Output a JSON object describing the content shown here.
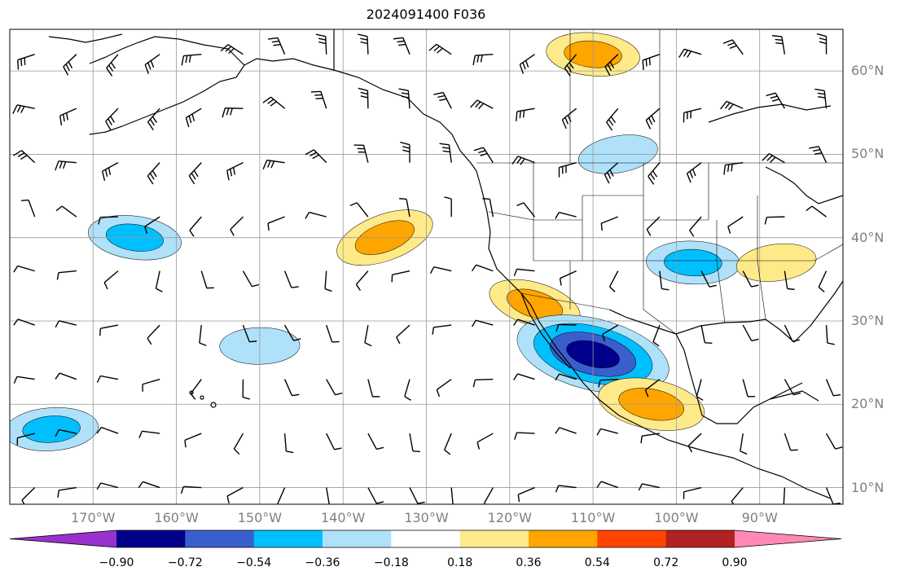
{
  "title": "2024091400 F036",
  "lat_labels": [
    "60°N",
    "50°N",
    "40°N",
    "30°N",
    "20°N",
    "10°N"
  ],
  "lon_labels": [
    "170°W",
    "160°W",
    "150°W",
    "140°W",
    "130°W",
    "120°W",
    "110°W",
    "100°W",
    "90°W"
  ],
  "map_extent": {
    "lon_min": -180,
    "lon_max": -80,
    "lat_min": 8,
    "lat_max": 65
  },
  "colorbar": {
    "colors": [
      "#9932cc",
      "#00008b",
      "#3a5fcd",
      "#00bfff",
      "#afe1fa",
      "#ffffff",
      "#ffea8a",
      "#ffa500",
      "#ff4500",
      "#b22222",
      "#ff88b4"
    ],
    "labels": [
      "−0.90",
      "−0.72",
      "−0.54",
      "−0.36",
      "−0.18",
      "0.18",
      "0.36",
      "0.54",
      "0.72",
      "0.90"
    ],
    "levels": [
      -0.9,
      -0.72,
      -0.54,
      -0.36,
      -0.18,
      0.18,
      0.36,
      0.54,
      0.72,
      0.9
    ]
  },
  "anomalies": [
    {
      "lon": -135,
      "lat": 40,
      "value": 0.45
    },
    {
      "lon": -117,
      "lat": 32,
      "value": 0.4
    },
    {
      "lon": -110,
      "lat": 26,
      "value": -0.85
    },
    {
      "lon": -103,
      "lat": 20,
      "value": 0.5
    },
    {
      "lon": -165,
      "lat": 40,
      "value": -0.4
    },
    {
      "lon": -110,
      "lat": 62,
      "value": 0.4
    },
    {
      "lon": -98,
      "lat": 37,
      "value": -0.4
    },
    {
      "lon": -150,
      "lat": 27,
      "value": -0.3
    },
    {
      "lon": -175,
      "lat": 17,
      "value": -0.4
    },
    {
      "lon": -88,
      "lat": 37,
      "value": 0.3
    },
    {
      "lon": -107,
      "lat": 50,
      "value": -0.3
    }
  ]
}
